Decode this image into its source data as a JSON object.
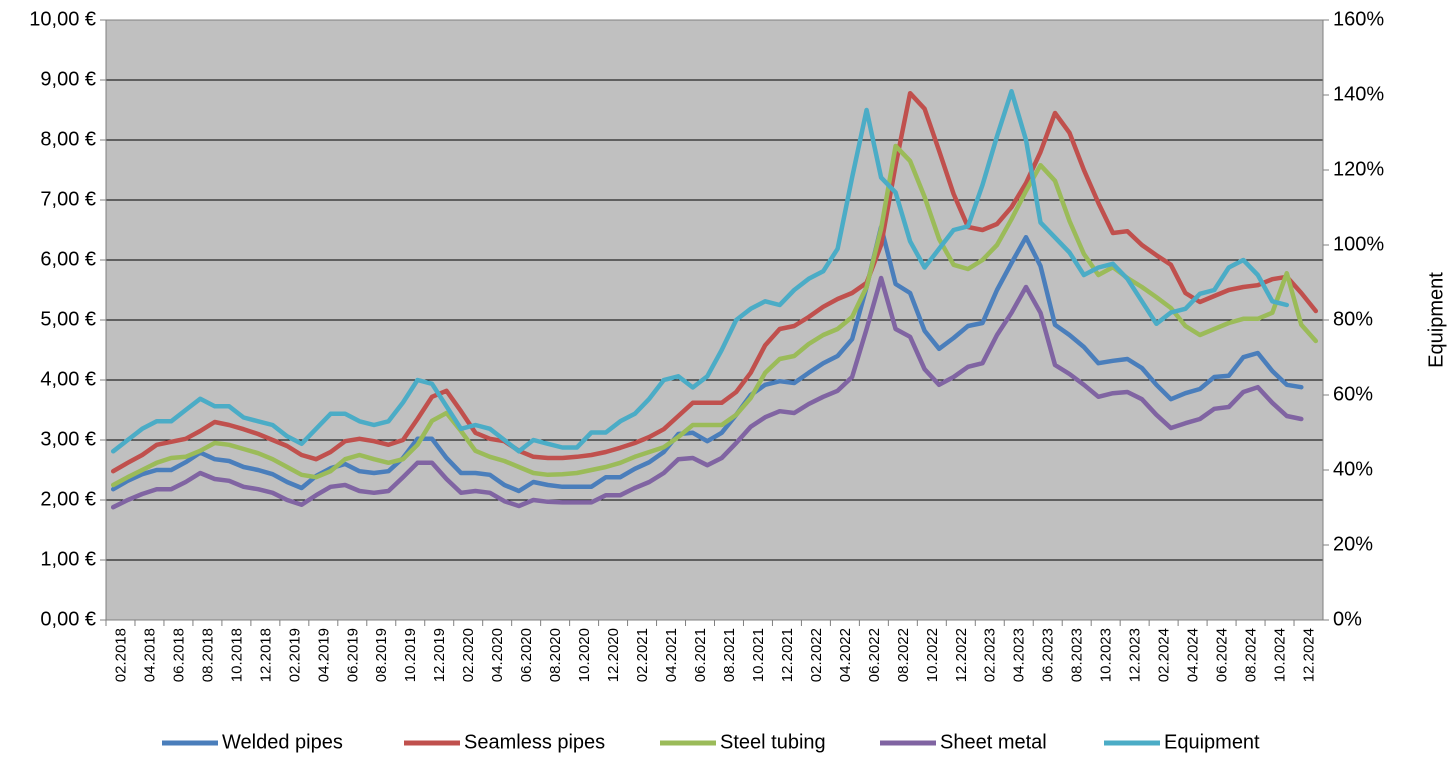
{
  "chart_data": {
    "type": "line",
    "title": "",
    "xlabel": "",
    "ylabel": "",
    "y2label": "Equipment",
    "ylim": [
      0,
      10
    ],
    "y2lim": [
      0,
      160
    ],
    "y_ticks": [
      "0,00 €",
      "1,00 €",
      "2,00 €",
      "3,00 €",
      "4,00 €",
      "5,00 €",
      "6,00 €",
      "7,00 €",
      "8,00 €",
      "9,00 €",
      "10,00 €"
    ],
    "y2_ticks": [
      "0%",
      "20%",
      "40%",
      "60%",
      "80%",
      "100%",
      "120%",
      "140%",
      "160%"
    ],
    "x_ticks": [
      "02.2018",
      "04.2018",
      "06.2018",
      "08.2018",
      "10.2018",
      "12.2018",
      "02.2019",
      "04.2019",
      "06.2019",
      "08.2019",
      "10.2019",
      "12.2019",
      "02.2020",
      "04.2020",
      "06.2020",
      "08.2020",
      "10.2020",
      "12.2020",
      "02.2021",
      "04.2021",
      "06.2021",
      "08.2021",
      "10.2021",
      "12.2021",
      "02.2022",
      "04.2022",
      "06.2022",
      "08.2022",
      "10.2022",
      "12.2022",
      "02.2023",
      "04.2023",
      "06.2023",
      "08.2023",
      "10.2023",
      "12.2023",
      "02.2024",
      "04.2024",
      "06.2024",
      "08.2024",
      "10.2024",
      "12.2024"
    ],
    "grid": true,
    "legend_position": "bottom",
    "colors": {
      "plot_background": "#c0c0c0",
      "gridline": "#000000"
    },
    "series": [
      {
        "name": "Welded pipes",
        "axis": "left",
        "color": "#4a7ebb",
        "values": [
          2.18,
          2.32,
          2.43,
          2.5,
          2.5,
          2.63,
          2.79,
          2.68,
          2.65,
          2.55,
          2.5,
          2.43,
          2.3,
          2.2,
          2.4,
          2.53,
          2.6,
          2.48,
          2.45,
          2.48,
          2.7,
          3.02,
          3.02,
          2.7,
          2.45,
          2.45,
          2.42,
          2.25,
          2.15,
          2.3,
          2.25,
          2.22,
          2.22,
          2.22,
          2.38,
          2.38,
          2.52,
          2.63,
          2.8,
          3.1,
          3.12,
          2.98,
          3.12,
          3.42,
          3.75,
          3.92,
          3.98,
          3.95,
          4.12,
          4.28,
          4.4,
          4.68,
          5.55,
          6.55,
          5.6,
          5.45,
          4.82,
          4.52,
          4.7,
          4.9,
          4.95,
          5.5,
          5.95,
          6.38,
          5.9,
          4.92,
          4.75,
          4.55,
          4.28,
          4.32,
          4.35,
          4.2,
          3.92,
          3.68,
          3.78,
          3.85,
          4.05,
          4.07,
          4.38,
          4.45,
          4.15,
          3.92,
          3.88
        ]
      },
      {
        "name": "Seamless pipes",
        "axis": "left",
        "color": "#c0504d",
        "values": [
          2.48,
          2.62,
          2.75,
          2.92,
          2.97,
          3.02,
          3.15,
          3.3,
          3.25,
          3.18,
          3.1,
          3.0,
          2.9,
          2.75,
          2.68,
          2.8,
          2.98,
          3.02,
          2.98,
          2.92,
          3.0,
          3.35,
          3.72,
          3.82,
          3.48,
          3.12,
          3.02,
          2.98,
          2.82,
          2.72,
          2.7,
          2.7,
          2.72,
          2.75,
          2.8,
          2.87,
          2.95,
          3.05,
          3.18,
          3.4,
          3.62,
          3.62,
          3.62,
          3.8,
          4.12,
          4.58,
          4.85,
          4.9,
          5.05,
          5.22,
          5.35,
          5.45,
          5.62,
          6.25,
          7.58,
          8.78,
          8.52,
          7.82,
          7.1,
          6.55,
          6.5,
          6.6,
          6.88,
          7.28,
          7.8,
          8.45,
          8.12,
          7.5,
          6.95,
          6.45,
          6.48,
          6.25,
          6.08,
          5.92,
          5.45,
          5.3,
          5.4,
          5.5,
          5.55,
          5.58,
          5.68,
          5.72,
          5.45,
          5.15
        ]
      },
      {
        "name": "Steel tubing",
        "axis": "left",
        "color": "#9bbb59",
        "values": [
          2.25,
          2.38,
          2.5,
          2.62,
          2.7,
          2.72,
          2.82,
          2.95,
          2.92,
          2.85,
          2.78,
          2.68,
          2.55,
          2.42,
          2.38,
          2.48,
          2.68,
          2.75,
          2.68,
          2.62,
          2.68,
          2.92,
          3.32,
          3.45,
          3.15,
          2.82,
          2.72,
          2.65,
          2.55,
          2.45,
          2.42,
          2.43,
          2.45,
          2.5,
          2.55,
          2.62,
          2.72,
          2.8,
          2.88,
          3.05,
          3.25,
          3.25,
          3.25,
          3.42,
          3.7,
          4.12,
          4.35,
          4.4,
          4.6,
          4.75,
          4.85,
          5.05,
          5.55,
          6.52,
          7.9,
          7.65,
          7.05,
          6.35,
          5.92,
          5.85,
          6.0,
          6.25,
          6.68,
          7.15,
          7.58,
          7.32,
          6.65,
          6.1,
          5.75,
          5.88,
          5.7,
          5.55,
          5.38,
          5.2,
          4.9,
          4.75,
          4.85,
          4.95,
          5.02,
          5.02,
          5.12,
          5.78,
          4.92,
          4.65
        ]
      },
      {
        "name": "Sheet metal",
        "axis": "left",
        "color": "#8064a2",
        "values": [
          1.88,
          2.0,
          2.1,
          2.18,
          2.18,
          2.3,
          2.45,
          2.35,
          2.32,
          2.22,
          2.18,
          2.12,
          2.0,
          1.92,
          2.08,
          2.22,
          2.25,
          2.15,
          2.12,
          2.15,
          2.38,
          2.62,
          2.62,
          2.35,
          2.12,
          2.15,
          2.12,
          1.98,
          1.9,
          2.0,
          1.97,
          1.96,
          1.96,
          1.96,
          2.08,
          2.08,
          2.2,
          2.3,
          2.45,
          2.68,
          2.7,
          2.58,
          2.7,
          2.95,
          3.22,
          3.38,
          3.48,
          3.45,
          3.6,
          3.72,
          3.82,
          4.05,
          4.85,
          5.7,
          4.85,
          4.72,
          4.18,
          3.92,
          4.05,
          4.22,
          4.28,
          4.75,
          5.12,
          5.55,
          5.12,
          4.25,
          4.1,
          3.92,
          3.72,
          3.78,
          3.8,
          3.68,
          3.42,
          3.2,
          3.28,
          3.35,
          3.52,
          3.55,
          3.8,
          3.88,
          3.62,
          3.4,
          3.35
        ]
      },
      {
        "name": "Equipment",
        "axis": "right",
        "color": "#4bacc6",
        "values": [
          45,
          48,
          51,
          53,
          53,
          56,
          59,
          57,
          57,
          54,
          53,
          52,
          49,
          47,
          51,
          55,
          55,
          53,
          52,
          53,
          58,
          64,
          63,
          57,
          51,
          52,
          51,
          48,
          45,
          48,
          47,
          46,
          46,
          50,
          50,
          53,
          55,
          59,
          64,
          65,
          62,
          65,
          72,
          80,
          83,
          85,
          84,
          88,
          91,
          93,
          99,
          118,
          136,
          118,
          114,
          101,
          94,
          99,
          104,
          105,
          116,
          129,
          141,
          128,
          106,
          102,
          98,
          92,
          94,
          95,
          91,
          85,
          79,
          82,
          83,
          87,
          88,
          94,
          96,
          92,
          85,
          84
        ]
      }
    ]
  }
}
